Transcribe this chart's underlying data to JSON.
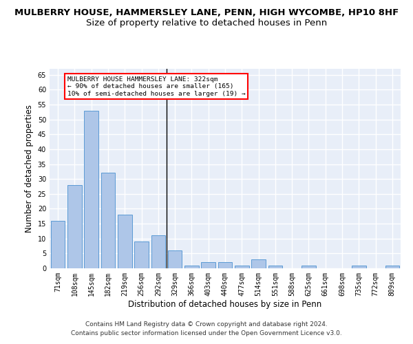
{
  "title": "MULBERRY HOUSE, HAMMERSLEY LANE, PENN, HIGH WYCOMBE, HP10 8HF",
  "subtitle": "Size of property relative to detached houses in Penn",
  "xlabel": "Distribution of detached houses by size in Penn",
  "ylabel": "Number of detached properties",
  "categories": [
    "71sqm",
    "108sqm",
    "145sqm",
    "182sqm",
    "219sqm",
    "256sqm",
    "292sqm",
    "329sqm",
    "366sqm",
    "403sqm",
    "440sqm",
    "477sqm",
    "514sqm",
    "551sqm",
    "588sqm",
    "625sqm",
    "661sqm",
    "698sqm",
    "735sqm",
    "772sqm",
    "809sqm"
  ],
  "values": [
    16,
    28,
    53,
    32,
    18,
    9,
    11,
    6,
    1,
    2,
    2,
    1,
    3,
    1,
    0,
    1,
    0,
    0,
    1,
    0,
    1
  ],
  "bar_color": "#aec6e8",
  "bar_edge_color": "#5b9bd5",
  "background_color": "#e8eef8",
  "grid_color": "#ffffff",
  "annotation_box_text": "MULBERRY HOUSE HAMMERSLEY LANE: 322sqm\n← 90% of detached houses are smaller (165)\n10% of semi-detached houses are larger (19) →",
  "vline_color": "#000000",
  "ylim": [
    0,
    67
  ],
  "yticks": [
    0,
    5,
    10,
    15,
    20,
    25,
    30,
    35,
    40,
    45,
    50,
    55,
    60,
    65
  ],
  "footer1": "Contains HM Land Registry data © Crown copyright and database right 2024.",
  "footer2": "Contains public sector information licensed under the Open Government Licence v3.0.",
  "title_fontsize": 9.5,
  "subtitle_fontsize": 9.5,
  "tick_fontsize": 7,
  "label_fontsize": 8.5,
  "footer_fontsize": 6.5
}
